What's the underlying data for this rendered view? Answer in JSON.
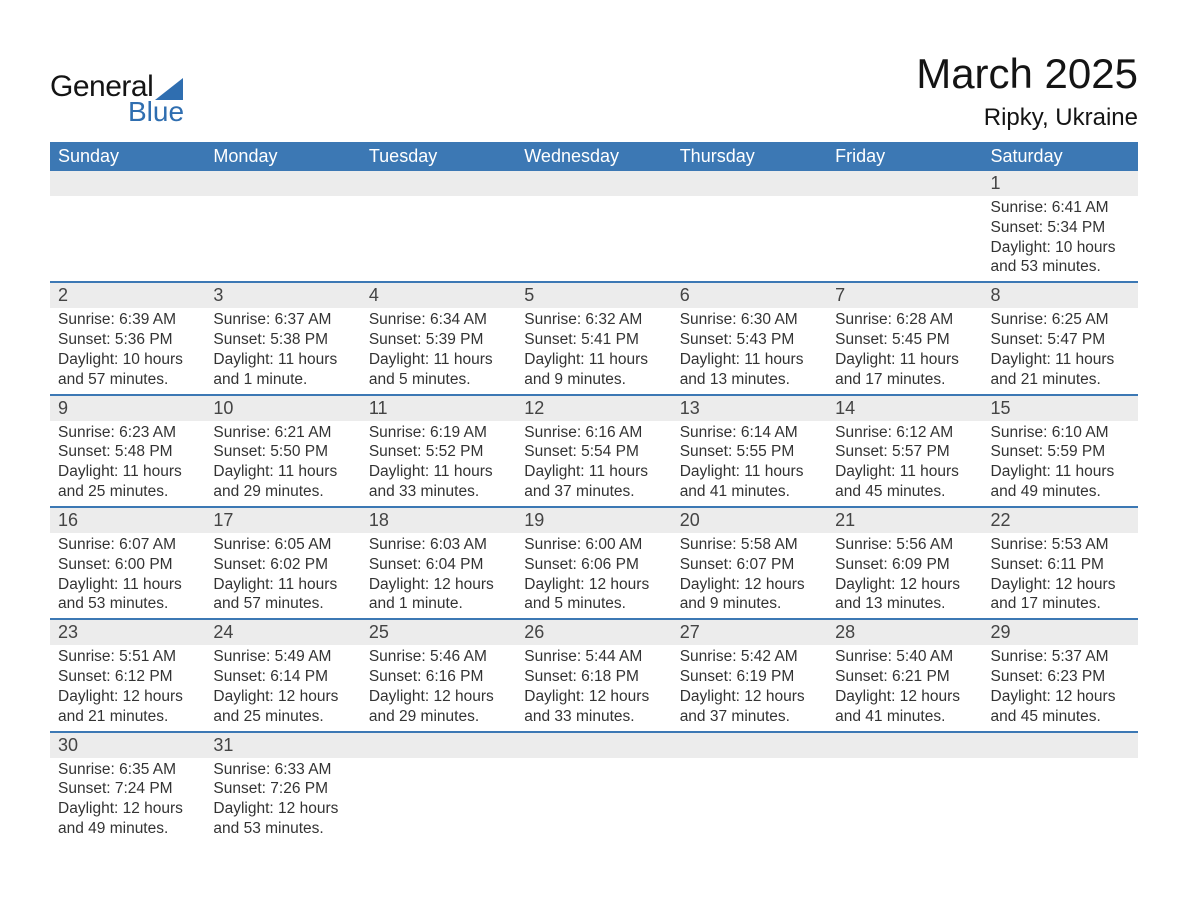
{
  "brand": {
    "word1": "General",
    "word2": "Blue",
    "accent_color": "#2f6eb0"
  },
  "title": {
    "month": "March 2025",
    "location": "Ripky, Ukraine"
  },
  "colors": {
    "header_bg": "#3c78b4",
    "header_text": "#ffffff",
    "daynum_bg": "#ececec",
    "row_divider": "#3c78b4",
    "body_text": "#333333",
    "background": "#ffffff"
  },
  "typography": {
    "title_fontsize_pt": 32,
    "location_fontsize_pt": 18,
    "header_fontsize_pt": 14,
    "daynum_fontsize_pt": 14,
    "body_fontsize_pt": 12,
    "font_family": "Arial"
  },
  "weekday_headers": [
    "Sunday",
    "Monday",
    "Tuesday",
    "Wednesday",
    "Thursday",
    "Friday",
    "Saturday"
  ],
  "labels": {
    "sunrise": "Sunrise",
    "sunset": "Sunset",
    "daylight": "Daylight"
  },
  "weeks": [
    [
      null,
      null,
      null,
      null,
      null,
      null,
      {
        "day": "1",
        "sunrise": "6:41 AM",
        "sunset": "5:34 PM",
        "daylight": "10 hours and 53 minutes."
      }
    ],
    [
      {
        "day": "2",
        "sunrise": "6:39 AM",
        "sunset": "5:36 PM",
        "daylight": "10 hours and 57 minutes."
      },
      {
        "day": "3",
        "sunrise": "6:37 AM",
        "sunset": "5:38 PM",
        "daylight": "11 hours and 1 minute."
      },
      {
        "day": "4",
        "sunrise": "6:34 AM",
        "sunset": "5:39 PM",
        "daylight": "11 hours and 5 minutes."
      },
      {
        "day": "5",
        "sunrise": "6:32 AM",
        "sunset": "5:41 PM",
        "daylight": "11 hours and 9 minutes."
      },
      {
        "day": "6",
        "sunrise": "6:30 AM",
        "sunset": "5:43 PM",
        "daylight": "11 hours and 13 minutes."
      },
      {
        "day": "7",
        "sunrise": "6:28 AM",
        "sunset": "5:45 PM",
        "daylight": "11 hours and 17 minutes."
      },
      {
        "day": "8",
        "sunrise": "6:25 AM",
        "sunset": "5:47 PM",
        "daylight": "11 hours and 21 minutes."
      }
    ],
    [
      {
        "day": "9",
        "sunrise": "6:23 AM",
        "sunset": "5:48 PM",
        "daylight": "11 hours and 25 minutes."
      },
      {
        "day": "10",
        "sunrise": "6:21 AM",
        "sunset": "5:50 PM",
        "daylight": "11 hours and 29 minutes."
      },
      {
        "day": "11",
        "sunrise": "6:19 AM",
        "sunset": "5:52 PM",
        "daylight": "11 hours and 33 minutes."
      },
      {
        "day": "12",
        "sunrise": "6:16 AM",
        "sunset": "5:54 PM",
        "daylight": "11 hours and 37 minutes."
      },
      {
        "day": "13",
        "sunrise": "6:14 AM",
        "sunset": "5:55 PM",
        "daylight": "11 hours and 41 minutes."
      },
      {
        "day": "14",
        "sunrise": "6:12 AM",
        "sunset": "5:57 PM",
        "daylight": "11 hours and 45 minutes."
      },
      {
        "day": "15",
        "sunrise": "6:10 AM",
        "sunset": "5:59 PM",
        "daylight": "11 hours and 49 minutes."
      }
    ],
    [
      {
        "day": "16",
        "sunrise": "6:07 AM",
        "sunset": "6:00 PM",
        "daylight": "11 hours and 53 minutes."
      },
      {
        "day": "17",
        "sunrise": "6:05 AM",
        "sunset": "6:02 PM",
        "daylight": "11 hours and 57 minutes."
      },
      {
        "day": "18",
        "sunrise": "6:03 AM",
        "sunset": "6:04 PM",
        "daylight": "12 hours and 1 minute."
      },
      {
        "day": "19",
        "sunrise": "6:00 AM",
        "sunset": "6:06 PM",
        "daylight": "12 hours and 5 minutes."
      },
      {
        "day": "20",
        "sunrise": "5:58 AM",
        "sunset": "6:07 PM",
        "daylight": "12 hours and 9 minutes."
      },
      {
        "day": "21",
        "sunrise": "5:56 AM",
        "sunset": "6:09 PM",
        "daylight": "12 hours and 13 minutes."
      },
      {
        "day": "22",
        "sunrise": "5:53 AM",
        "sunset": "6:11 PM",
        "daylight": "12 hours and 17 minutes."
      }
    ],
    [
      {
        "day": "23",
        "sunrise": "5:51 AM",
        "sunset": "6:12 PM",
        "daylight": "12 hours and 21 minutes."
      },
      {
        "day": "24",
        "sunrise": "5:49 AM",
        "sunset": "6:14 PM",
        "daylight": "12 hours and 25 minutes."
      },
      {
        "day": "25",
        "sunrise": "5:46 AM",
        "sunset": "6:16 PM",
        "daylight": "12 hours and 29 minutes."
      },
      {
        "day": "26",
        "sunrise": "5:44 AM",
        "sunset": "6:18 PM",
        "daylight": "12 hours and 33 minutes."
      },
      {
        "day": "27",
        "sunrise": "5:42 AM",
        "sunset": "6:19 PM",
        "daylight": "12 hours and 37 minutes."
      },
      {
        "day": "28",
        "sunrise": "5:40 AM",
        "sunset": "6:21 PM",
        "daylight": "12 hours and 41 minutes."
      },
      {
        "day": "29",
        "sunrise": "5:37 AM",
        "sunset": "6:23 PM",
        "daylight": "12 hours and 45 minutes."
      }
    ],
    [
      {
        "day": "30",
        "sunrise": "6:35 AM",
        "sunset": "7:24 PM",
        "daylight": "12 hours and 49 minutes."
      },
      {
        "day": "31",
        "sunrise": "6:33 AM",
        "sunset": "7:26 PM",
        "daylight": "12 hours and 53 minutes."
      },
      null,
      null,
      null,
      null,
      null
    ]
  ]
}
